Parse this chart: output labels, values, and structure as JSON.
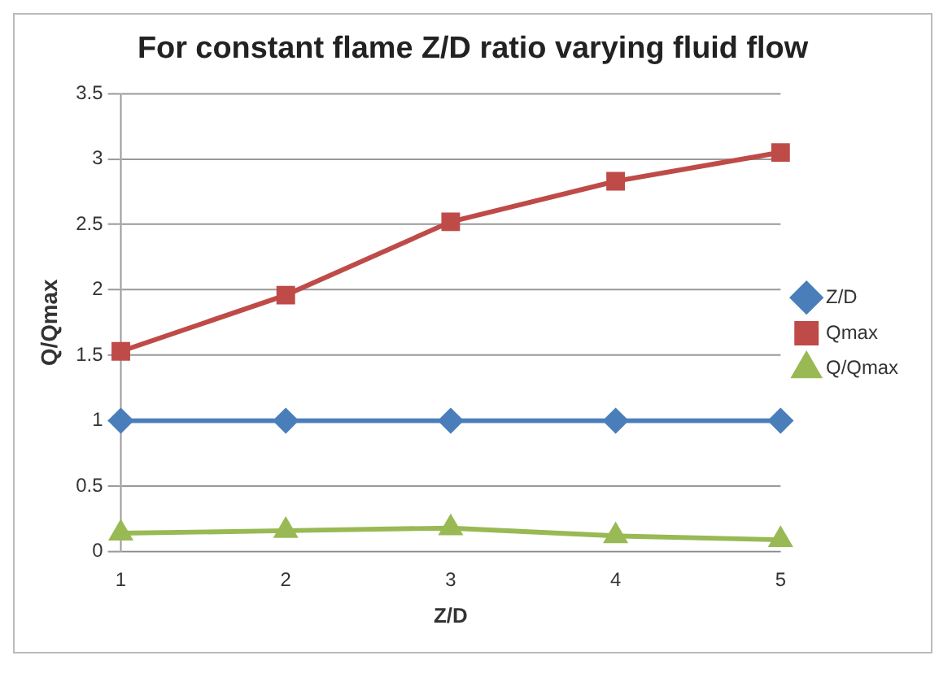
{
  "chart_data": {
    "type": "line",
    "title": "For constant flame Z/D ratio varying fluid flow",
    "xlabel": "Z/D",
    "ylabel": "Q/Qmax",
    "categories": [
      "1",
      "2",
      "3",
      "4",
      "5"
    ],
    "series": [
      {
        "name": "Z/D",
        "color": "#4a7ebb",
        "marker": "diamond",
        "values": [
          1,
          1,
          1,
          1,
          1
        ]
      },
      {
        "name": "Qmax",
        "color": "#be4b48",
        "marker": "square",
        "values": [
          1.53,
          1.96,
          2.52,
          2.83,
          3.05
        ]
      },
      {
        "name": "Q/Qmax",
        "color": "#98b954",
        "marker": "triangle",
        "values": [
          0.14,
          0.16,
          0.18,
          0.12,
          0.09
        ]
      }
    ],
    "ylim": [
      0,
      3.5
    ],
    "yticks": [
      0,
      0.5,
      1,
      1.5,
      2,
      2.5,
      3,
      3.5
    ],
    "grid": "y",
    "legend": "right"
  }
}
